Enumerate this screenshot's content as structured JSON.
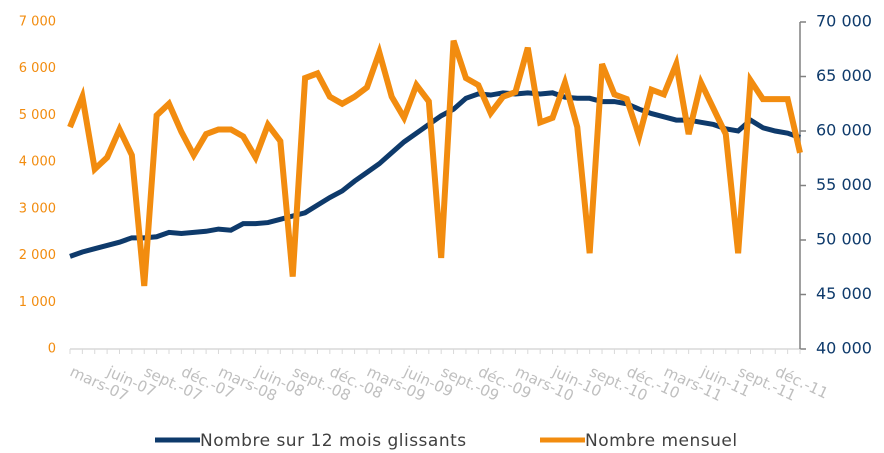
{
  "chart_data": {
    "type": "line",
    "categories": [
      null,
      null,
      "mars-07",
      null,
      null,
      "juin-07",
      null,
      null,
      "sept.-07",
      null,
      null,
      "déc.-07",
      null,
      null,
      "mars-08",
      null,
      null,
      "juin-08",
      null,
      null,
      "sept.-08",
      null,
      null,
      "déc.-08",
      null,
      null,
      "mars-09",
      null,
      null,
      "juin-09",
      null,
      null,
      "sept.-09",
      null,
      null,
      "déc.-09",
      null,
      null,
      "mars-10",
      null,
      null,
      "juin-10",
      null,
      null,
      "sept.-10",
      null,
      null,
      "déc.-10",
      null,
      null,
      "mars-11",
      null,
      null,
      "juin-11",
      null,
      null,
      "sept.-11",
      null,
      null,
      "déc.-11"
    ],
    "series": [
      {
        "name": "Nombre sur 12 mois glissants",
        "color": "#0e3a6b",
        "axis": "y2",
        "values": [
          48500,
          48900,
          49200,
          49500,
          49800,
          50200,
          50200,
          50300,
          50700,
          50600,
          50700,
          50800,
          51000,
          50900,
          51500,
          51500,
          51600,
          51900,
          52200,
          52500,
          53200,
          53900,
          54500,
          55400,
          56200,
          57000,
          58000,
          59000,
          59800,
          60600,
          61400,
          62000,
          63000,
          63400,
          63300,
          63500,
          63400,
          63500,
          63400,
          63500,
          63100,
          63000,
          63000,
          62700,
          62700,
          62500,
          62000,
          61600,
          61300,
          61000,
          61000,
          60800,
          60600,
          60200,
          60000,
          61000,
          60300,
          60000,
          59800,
          59400
        ]
      },
      {
        "name": "Nombre mensuel",
        "color": "#f28c0f",
        "values": [
          4750,
          5400,
          3850,
          4100,
          4700,
          4150,
          1350,
          5000,
          5250,
          4650,
          4150,
          4600,
          4700,
          4700,
          4550,
          4100,
          4800,
          4450,
          1550,
          5800,
          5900,
          5400,
          5250,
          5400,
          5600,
          6350,
          5400,
          4950,
          5650,
          5300,
          1950,
          6600,
          5800,
          5650,
          5050,
          5400,
          5500,
          6450,
          4850,
          4950,
          5700,
          4750,
          2050,
          6100,
          5450,
          5350,
          4550,
          5550,
          5450,
          6100,
          4600,
          5700,
          5150,
          4600,
          2050,
          5750,
          5350,
          5350,
          5350,
          4200
        ]
      }
    ],
    "ylim": [
      0,
      7000
    ],
    "yticks": [
      0,
      {
        "value": 1000,
        "label": "1 000"
      },
      {
        "value": 2000,
        "label": "2 000"
      },
      {
        "value": 3000,
        "label": "3 000"
      },
      {
        "value": 4000,
        "label": "4 000"
      },
      {
        "value": 5000,
        "label": "5 000"
      },
      {
        "value": 6000,
        "label": "6 000"
      },
      {
        "value": 7000,
        "label": "7 000"
      }
    ],
    "y2lim": [
      40000,
      70000
    ],
    "y2ticks": [
      {
        "value": 40000,
        "label": "40 000"
      },
      {
        "value": 45000,
        "label": "45 000"
      },
      {
        "value": 50000,
        "label": "50 000"
      },
      {
        "value": 55000,
        "label": "55 000"
      },
      {
        "value": 60000,
        "label": "60 000"
      },
      {
        "value": 65000,
        "label": "65 000"
      },
      {
        "value": 70000,
        "label": "70 000"
      }
    ],
    "grid": false,
    "legend": "bottom"
  }
}
